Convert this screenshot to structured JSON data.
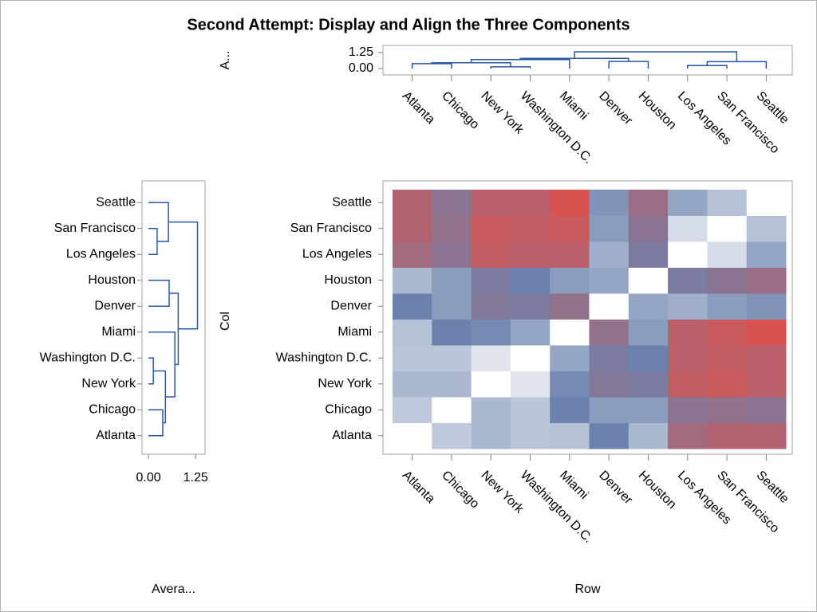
{
  "title": "Second Attempt: Display and Align the Three Components",
  "chart_data": [
    {
      "type": "dendrogram",
      "orientation": "vertical",
      "ylabel": "A...",
      "categories": [
        "Atlanta",
        "Chicago",
        "New York",
        "Washington D.C.",
        "Miami",
        "Denver",
        "Houston",
        "Los Angeles",
        "San Francisco",
        "Seattle"
      ],
      "merges": [
        [
          2,
          3,
          0.13
        ],
        [
          0,
          1,
          0.38
        ],
        [
          11,
          10,
          0.45
        ],
        [
          12,
          4,
          0.7
        ],
        [
          5,
          6,
          0.55
        ],
        [
          13,
          14,
          0.79
        ],
        [
          7,
          8,
          0.23
        ],
        [
          16,
          9,
          0.53
        ],
        [
          15,
          17,
          1.3
        ]
      ],
      "color": "#2a57a5",
      "ylim": [
        -0.5,
        1.8
      ],
      "yticks": [
        {
          "value": 0,
          "label": "0.00"
        },
        {
          "value": 1.25,
          "label": "1.25"
        }
      ]
    },
    {
      "type": "dendrogram",
      "orientation": "horizontal",
      "xlabel": "Avera...",
      "categories": [
        "Atlanta",
        "Chicago",
        "New York",
        "Washington D.C.",
        "Miami",
        "Denver",
        "Houston",
        "Los Angeles",
        "San Francisco",
        "Seattle"
      ],
      "merges": [
        [
          2,
          3,
          0.13
        ],
        [
          0,
          1,
          0.38
        ],
        [
          11,
          10,
          0.45
        ],
        [
          12,
          4,
          0.7
        ],
        [
          5,
          6,
          0.55
        ],
        [
          13,
          14,
          0.79
        ],
        [
          7,
          8,
          0.23
        ],
        [
          16,
          9,
          0.53
        ],
        [
          15,
          17,
          1.3
        ]
      ],
      "color": "#2a57a5",
      "xlim": [
        -0.17,
        1.5
      ],
      "xticks": [
        {
          "value": 0,
          "label": "0.00"
        },
        {
          "value": 1.25,
          "label": "1.25"
        }
      ]
    },
    {
      "type": "heatmap",
      "xlabel": "Row",
      "ylabel": "Col",
      "x_categories": [
        "Atlanta",
        "Chicago",
        "New York",
        "Washington D.C.",
        "Miami",
        "Denver",
        "Houston",
        "Los Angeles",
        "San Francisco",
        "Seattle"
      ],
      "y_categories": [
        "Atlanta",
        "Chicago",
        "New York",
        "Washington D.C.",
        "Miami",
        "Denver",
        "Houston",
        "Los Angeles",
        "San Francisco",
        "Seattle"
      ],
      "values": [
        [
          0,
          0.6,
          0.8,
          0.65,
          0.7,
          1.4,
          0.8,
          2.1,
          2.3,
          2.3
        ],
        [
          0.6,
          0,
          0.8,
          0.65,
          1.4,
          1.1,
          1.1,
          1.8,
          1.9,
          1.8
        ],
        [
          0.8,
          0.8,
          0,
          0.3,
          1.3,
          1.7,
          1.6,
          2.5,
          2.6,
          2.4
        ],
        [
          0.65,
          0.65,
          0.3,
          0,
          1.0,
          1.6,
          1.4,
          2.4,
          2.5,
          2.4
        ],
        [
          0.7,
          1.4,
          1.3,
          1.0,
          0,
          1.9,
          1.1,
          2.4,
          2.6,
          2.8
        ],
        [
          1.4,
          1.1,
          1.7,
          1.6,
          1.9,
          0,
          1.0,
          0.9,
          1.1,
          1.2
        ],
        [
          0.8,
          1.1,
          1.6,
          1.4,
          1.1,
          1.0,
          0,
          1.6,
          1.8,
          2.0
        ],
        [
          2.1,
          1.8,
          2.5,
          2.4,
          2.4,
          0.9,
          1.6,
          0,
          0.4,
          1.0
        ],
        [
          2.3,
          1.9,
          2.6,
          2.5,
          2.6,
          1.1,
          1.8,
          0.4,
          0,
          0.7
        ],
        [
          2.3,
          1.8,
          2.4,
          2.4,
          2.8,
          1.2,
          2.0,
          1.0,
          0.7,
          0
        ]
      ],
      "colors": [
        "#ffffff",
        "#6b82ad",
        "#d8524f"
      ],
      "colorlim": [
        0,
        2.8
      ]
    }
  ]
}
